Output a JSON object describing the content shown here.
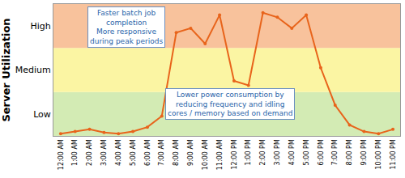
{
  "chart_data": {
    "type": "line",
    "y_label": "Server Utilization",
    "categories": [
      "12:00 AM",
      "1:00 AM",
      "2:00 AM",
      "3:00 AM",
      "4:00 AM",
      "5:00 AM",
      "6:00 AM",
      "7:00 AM",
      "8:00 AM",
      "9:00 AM",
      "10:00 AM",
      "11:00 AM",
      "12:00 PM",
      "1:00 PM",
      "2:00 PM",
      "3:00 PM",
      "4:00 PM",
      "5:00 PM",
      "6:00 PM",
      "7:00 PM",
      "8:00 PM",
      "9:00 PM",
      "10:00 PM",
      "11:00 PM"
    ],
    "values": [
      0.05,
      0.1,
      0.15,
      0.08,
      0.05,
      0.1,
      0.2,
      0.45,
      2.35,
      2.45,
      2.1,
      2.75,
      1.25,
      1.15,
      2.8,
      2.7,
      2.45,
      2.75,
      1.55,
      0.7,
      0.25,
      0.1,
      0.05,
      0.15
    ],
    "color": "#e8641b",
    "marker": "circle",
    "line_style": "solid",
    "ylim": [
      0,
      3
    ],
    "yticks": [
      {
        "value": 0.5,
        "label": "Low"
      },
      {
        "value": 1.5,
        "label": "Medium"
      },
      {
        "value": 2.5,
        "label": "High"
      }
    ],
    "bands": [
      {
        "label": "Low",
        "from": 0,
        "to": 1,
        "color": "#d3ebb4"
      },
      {
        "label": "Medium",
        "from": 1,
        "to": 2,
        "color": "#fbf5a3"
      },
      {
        "label": "High",
        "from": 2,
        "to": 3,
        "color": "#f8c29c"
      }
    ],
    "grid": false,
    "annotations": [
      {
        "text": [
          "Faster batch job",
          "completion",
          "More responsive",
          "during peak periods"
        ]
      },
      {
        "text": [
          "Lower power consumption by",
          "reducing frequency and idling",
          "cores / memory based on demand"
        ]
      }
    ]
  }
}
